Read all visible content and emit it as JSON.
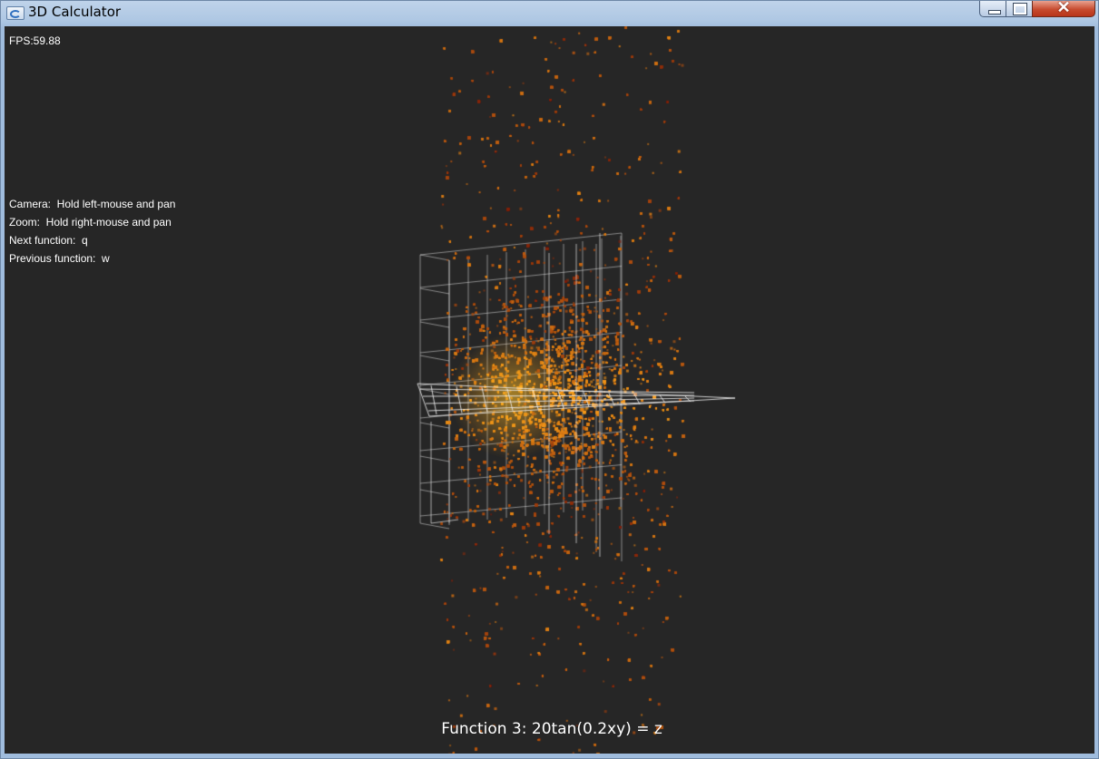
{
  "window": {
    "title": "3D Calculator",
    "close_label": "✕"
  },
  "hud": {
    "fps": "FPS:59.88",
    "help": [
      "Camera:  Hold left-mouse and pan",
      "Zoom:  Hold right-mouse and pan",
      "Next function:  q",
      "Previous function:  w"
    ],
    "function_label": "Function 3: 20tan(0.2xy) = z"
  },
  "colors": {
    "background": "#262626",
    "grid": "#d8d8d8",
    "point_bright": "#ffa31a",
    "point_dark": "#7a1a0a"
  }
}
